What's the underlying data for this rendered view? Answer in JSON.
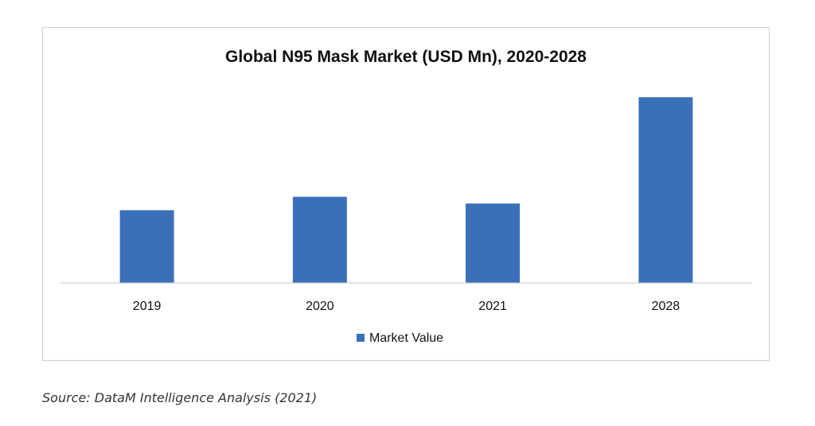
{
  "chart_data": {
    "type": "bar",
    "title": "Global N95 Mask Market (USD Mn), 2020-2028",
    "categories": [
      "2019",
      "2020",
      "2021",
      "2028"
    ],
    "series": [
      {
        "name": "Market Value",
        "values": [
          2.7,
          3.2,
          2.95,
          6.9
        ],
        "color": "#3b70b8"
      }
    ],
    "xlabel": "",
    "ylabel": "",
    "ylim": [
      0,
      8
    ],
    "grid": false,
    "legend": "bottom-center",
    "value_axis_labels_visible": false
  },
  "source_note": "Source: DataM Intelligence Analysis (2021)"
}
